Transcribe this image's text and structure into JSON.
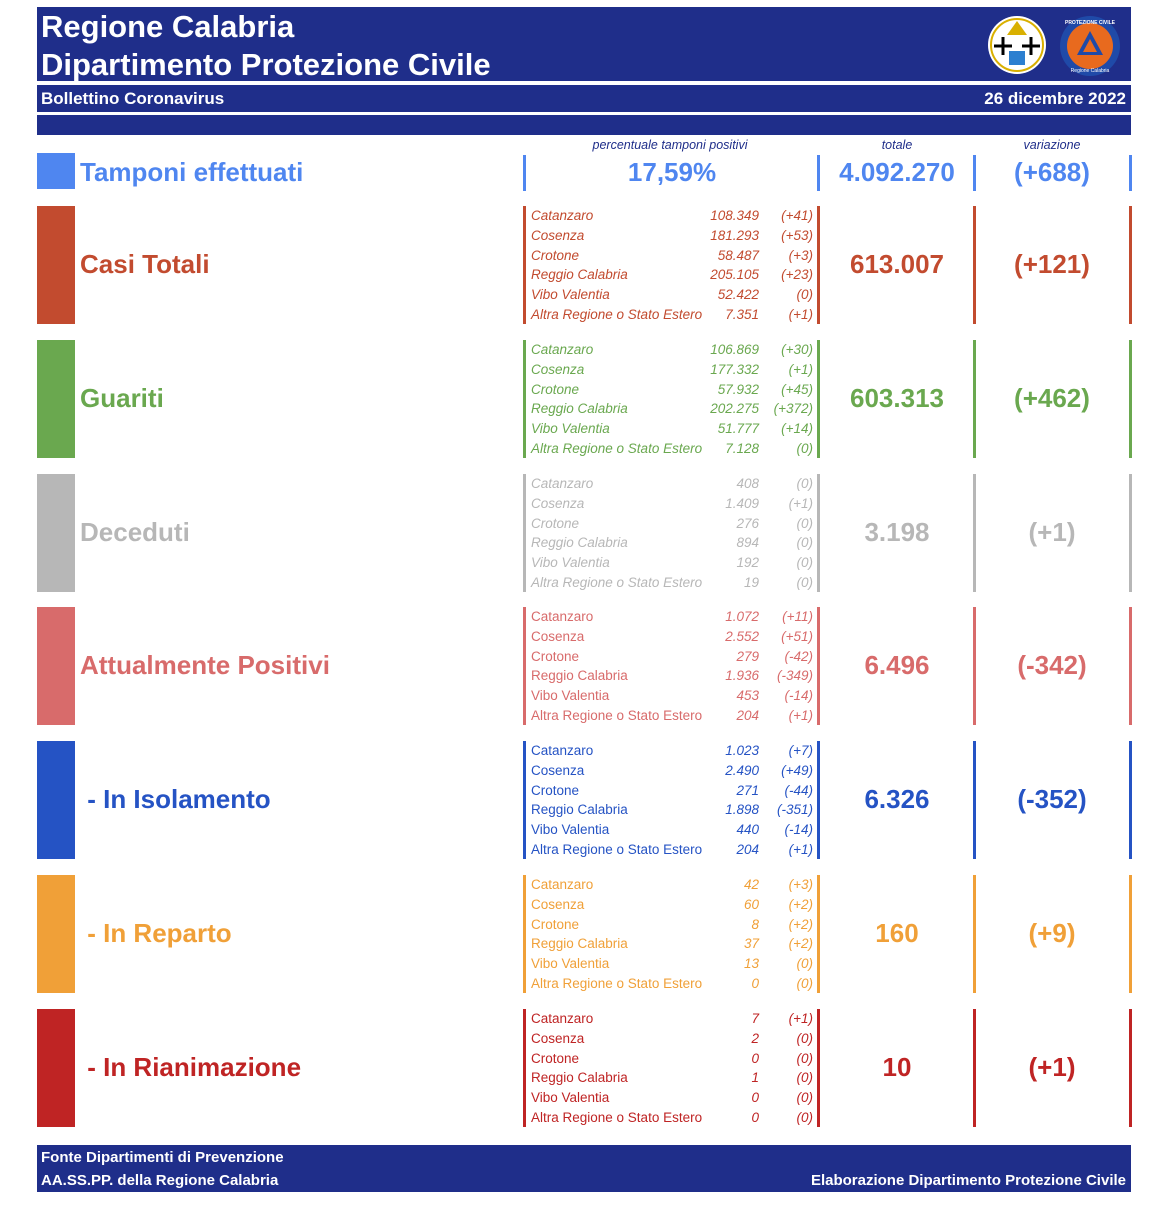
{
  "header": {
    "title_line1": "Regione Calabria",
    "title_line2": "Dipartimento Protezione Civile",
    "logo_region_icon": "calabria-region-emblem-icon",
    "logo_pc_icon": "protezione-civile-logo-icon",
    "logo_pc_text_top": "PROTEZIONE CIVILE",
    "logo_pc_text_bottom": "Regione Calabria"
  },
  "subheader": {
    "bulletin": "Bollettino Coronavirus",
    "date": "26 dicembre 2022"
  },
  "columns": {
    "percent_label": "percentuale tamponi positivi",
    "total_label": "totale",
    "variation_label": "variazione"
  },
  "colors": {
    "navy": "#1f2e8a",
    "tamponi": "#4f86f0",
    "casi": "#c24b2f",
    "guariti": "#6aa84f",
    "deceduti": "#b7b7b7",
    "positivi": "#d86b6b",
    "isolamento": "#2553c4",
    "reparto": "#f0a038",
    "rianimazione": "#bf2424"
  },
  "tamponi": {
    "label": "Tamponi effettuati",
    "percent": "17,59%",
    "total": "4.092.270",
    "variation": "(+688)"
  },
  "categories": [
    {
      "key": "casi",
      "label": "Casi Totali",
      "total": "613.007",
      "variation": "(+121)",
      "italic": true,
      "provinces": [
        {
          "name": "Catanzaro",
          "value": "108.349",
          "delta": "(+41)"
        },
        {
          "name": "Cosenza",
          "value": "181.293",
          "delta": "(+53)"
        },
        {
          "name": "Crotone",
          "value": "58.487",
          "delta": "(+3)"
        },
        {
          "name": "Reggio Calabria",
          "value": "205.105",
          "delta": "(+23)"
        },
        {
          "name": "Vibo Valentia",
          "value": "52.422",
          "delta": "(0)"
        },
        {
          "name": "Altra Regione o Stato Estero",
          "value": "7.351",
          "delta": "(+1)"
        }
      ]
    },
    {
      "key": "guariti",
      "label": "Guariti",
      "total": "603.313",
      "variation": "(+462)",
      "italic": true,
      "provinces": [
        {
          "name": "Catanzaro",
          "value": "106.869",
          "delta": "(+30)"
        },
        {
          "name": "Cosenza",
          "value": "177.332",
          "delta": "(+1)"
        },
        {
          "name": "Crotone",
          "value": "57.932",
          "delta": "(+45)"
        },
        {
          "name": "Reggio Calabria",
          "value": "202.275",
          "delta": "(+372)"
        },
        {
          "name": "Vibo Valentia",
          "value": "51.777",
          "delta": "(+14)"
        },
        {
          "name": "Altra Regione o Stato Estero",
          "value": "7.128",
          "delta": "(0)"
        }
      ]
    },
    {
      "key": "deceduti",
      "label": "Deceduti",
      "total": "3.198",
      "variation": "(+1)",
      "italic": true,
      "provinces": [
        {
          "name": "Catanzaro",
          "value": "408",
          "delta": "(0)"
        },
        {
          "name": "Cosenza",
          "value": "1.409",
          "delta": "(+1)"
        },
        {
          "name": "Crotone",
          "value": "276",
          "delta": "(0)"
        },
        {
          "name": "Reggio Calabria",
          "value": "894",
          "delta": "(0)"
        },
        {
          "name": "Vibo Valentia",
          "value": "192",
          "delta": "(0)"
        },
        {
          "name": "Altra Regione o Stato Estero",
          "value": "19",
          "delta": "(0)"
        }
      ]
    },
    {
      "key": "positivi",
      "label": "Attualmente Positivi",
      "total": "6.496",
      "variation": "(-342)",
      "italic": false,
      "provinces": [
        {
          "name": "Catanzaro",
          "value": "1.072",
          "delta": "(+11)"
        },
        {
          "name": "Cosenza",
          "value": "2.552",
          "delta": "(+51)"
        },
        {
          "name": "Crotone",
          "value": "279",
          "delta": "(-42)"
        },
        {
          "name": "Reggio Calabria",
          "value": "1.936",
          "delta": "(-349)"
        },
        {
          "name": "Vibo Valentia",
          "value": "453",
          "delta": "(-14)"
        },
        {
          "name": "Altra Regione o Stato Estero",
          "value": "204",
          "delta": "(+1)"
        }
      ]
    },
    {
      "key": "isolamento",
      "label": " - In Isolamento",
      "total": "6.326",
      "variation": "(-352)",
      "italic": false,
      "provinces": [
        {
          "name": "Catanzaro",
          "value": "1.023",
          "delta": "(+7)"
        },
        {
          "name": "Cosenza",
          "value": "2.490",
          "delta": "(+49)"
        },
        {
          "name": "Crotone",
          "value": "271",
          "delta": "(-44)"
        },
        {
          "name": "Reggio Calabria",
          "value": "1.898",
          "delta": "(-351)"
        },
        {
          "name": "Vibo Valentia",
          "value": "440",
          "delta": "(-14)"
        },
        {
          "name": "Altra Regione o Stato Estero",
          "value": "204",
          "delta": "(+1)"
        }
      ]
    },
    {
      "key": "reparto",
      "label": " - In Reparto",
      "total": "160",
      "variation": "(+9)",
      "italic": false,
      "provinces": [
        {
          "name": "Catanzaro",
          "value": "42",
          "delta": "(+3)"
        },
        {
          "name": "Cosenza",
          "value": "60",
          "delta": "(+2)"
        },
        {
          "name": "Crotone",
          "value": "8",
          "delta": "(+2)"
        },
        {
          "name": "Reggio Calabria",
          "value": "37",
          "delta": "(+2)"
        },
        {
          "name": "Vibo Valentia",
          "value": "13",
          "delta": "(0)"
        },
        {
          "name": "Altra Regione o Stato Estero",
          "value": "0",
          "delta": "(0)"
        }
      ]
    },
    {
      "key": "rianimazione",
      "label": " - In Rianimazione",
      "total": "10",
      "variation": "(+1)",
      "italic": false,
      "provinces": [
        {
          "name": "Catanzaro",
          "value": "7",
          "delta": "(+1)"
        },
        {
          "name": "Cosenza",
          "value": "2",
          "delta": "(0)"
        },
        {
          "name": "Crotone",
          "value": "0",
          "delta": "(0)"
        },
        {
          "name": "Reggio Calabria",
          "value": "1",
          "delta": "(0)"
        },
        {
          "name": "Vibo Valentia",
          "value": "0",
          "delta": "(0)"
        },
        {
          "name": "Altra Regione o Stato Estero",
          "value": "0",
          "delta": "(0)"
        }
      ]
    }
  ],
  "footer": {
    "line1": "Fonte Dipartimenti di Prevenzione",
    "line2": "AA.SS.PP.  della Regione Calabria",
    "right": "Elaborazione Dipartimento Protezione Civile"
  }
}
